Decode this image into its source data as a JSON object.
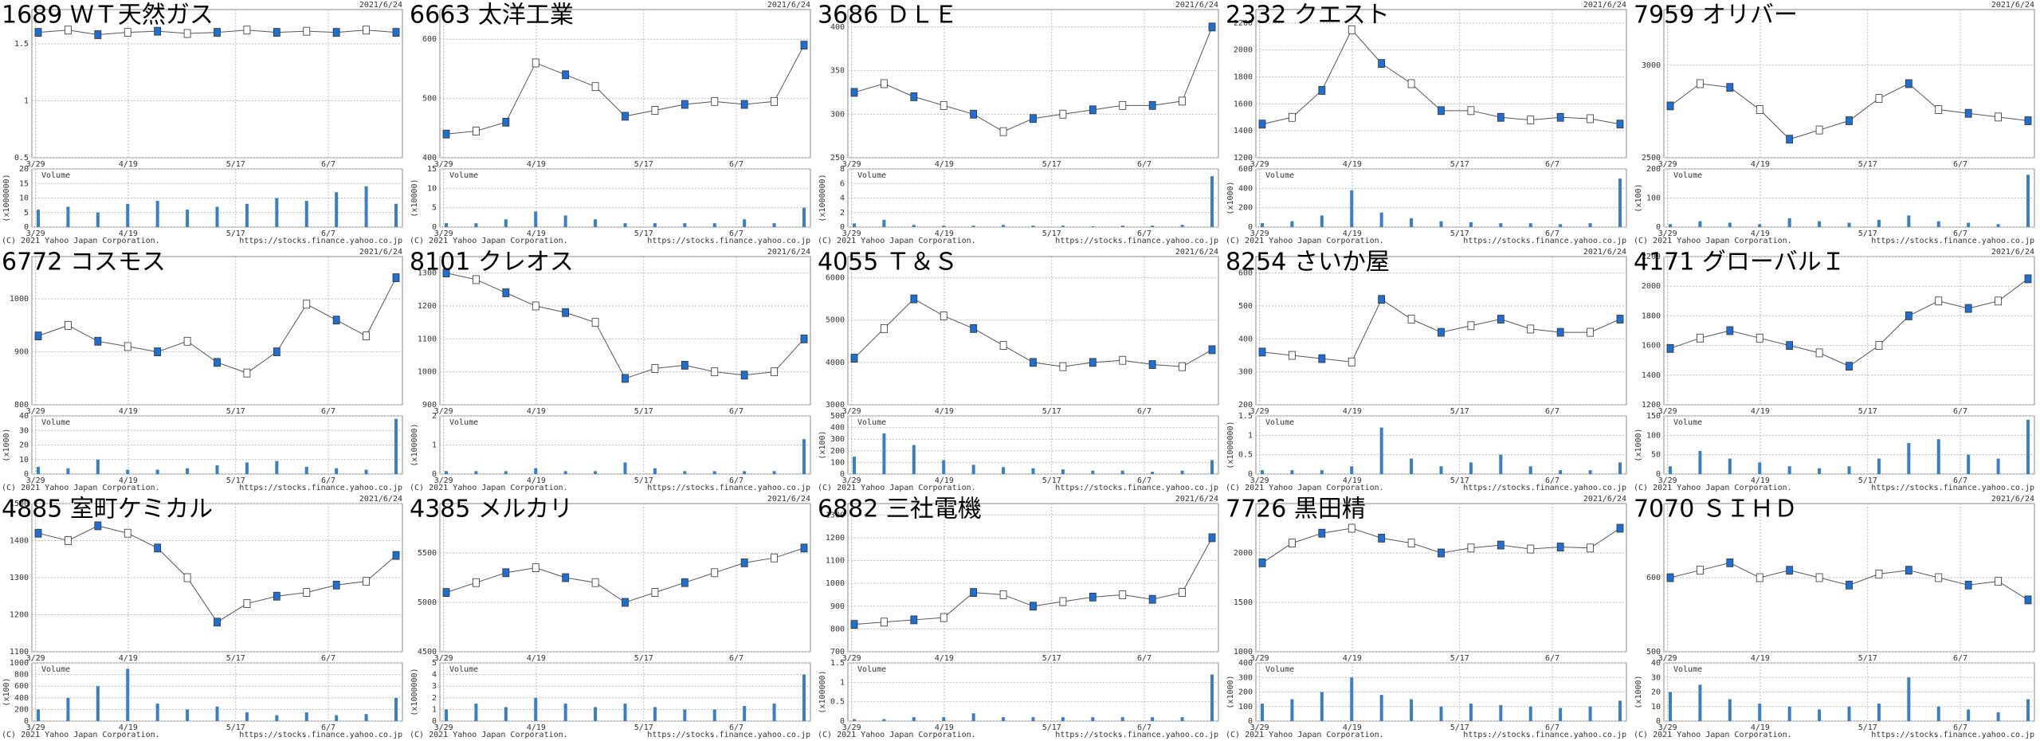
{
  "date": "2021/6/24",
  "footer": {
    "copyright": "(C) 2021 Yahoo Japan Corporation.",
    "url": "https://stocks.finance.yahoo.co.jp"
  },
  "x_labels": [
    "3/29",
    "4/19",
    "5/17",
    "6/7"
  ],
  "chart_data": [
    {
      "type": "line",
      "title": "1689 ＷＴ天然ガス",
      "color": "#1e6fcf",
      "ylim": [
        0.5,
        1.8
      ],
      "yticks": [
        0.5,
        1,
        1.5
      ],
      "values": [
        1.6,
        1.62,
        1.58,
        1.6,
        1.61,
        1.59,
        1.6,
        1.62,
        1.6,
        1.61,
        1.6,
        1.62,
        1.6
      ],
      "volume": {
        "label": "Volume",
        "unit": "(x1000000)",
        "ylim": [
          0,
          20
        ],
        "yticks": [
          0,
          5,
          10,
          15,
          20
        ],
        "values": [
          6,
          7,
          5,
          8,
          9,
          6,
          7,
          8,
          10,
          9,
          12,
          14,
          8
        ]
      }
    },
    {
      "type": "line",
      "title": "6663 太洋工業",
      "color": "#1e6fcf",
      "ylim": [
        400,
        650
      ],
      "yticks": [
        400,
        500,
        600
      ],
      "values": [
        440,
        445,
        460,
        560,
        540,
        520,
        470,
        480,
        490,
        495,
        490,
        495,
        590
      ],
      "volume": {
        "label": "Volume",
        "unit": "(x10000)",
        "ylim": [
          0,
          15
        ],
        "yticks": [
          0,
          5,
          10,
          15
        ],
        "values": [
          1,
          1,
          2,
          4,
          3,
          2,
          1,
          1,
          1,
          1,
          2,
          1,
          5
        ]
      }
    },
    {
      "type": "line",
      "title": "3686 ＤＬＥ",
      "color": "#1e6fcf",
      "ylim": [
        250,
        420
      ],
      "yticks": [
        250,
        300,
        350,
        400
      ],
      "values": [
        325,
        335,
        320,
        310,
        300,
        280,
        295,
        300,
        305,
        310,
        310,
        315,
        400
      ],
      "volume": {
        "label": "Volume",
        "unit": "(x1000000)",
        "ylim": [
          0,
          8
        ],
        "yticks": [
          0,
          2,
          4,
          6,
          8
        ],
        "values": [
          0.5,
          1,
          0.3,
          0.2,
          0.2,
          0.3,
          0.2,
          0.2,
          0.1,
          0.2,
          0.2,
          0.3,
          7
        ]
      }
    },
    {
      "type": "line",
      "title": "2332 クエスト",
      "color": "#1e6fcf",
      "ylim": [
        1200,
        2300
      ],
      "yticks": [
        1200,
        1400,
        1600,
        1800,
        2000,
        2200
      ],
      "values": [
        1450,
        1500,
        1700,
        2150,
        1900,
        1750,
        1550,
        1550,
        1500,
        1480,
        1500,
        1490,
        1450
      ],
      "volume": {
        "label": "Volume",
        "unit": "(x1000)",
        "ylim": [
          0,
          600
        ],
        "yticks": [
          0,
          200,
          400,
          600
        ],
        "values": [
          40,
          60,
          120,
          380,
          150,
          90,
          60,
          50,
          40,
          40,
          30,
          40,
          500
        ]
      }
    },
    {
      "type": "line",
      "title": "7959 オリバー",
      "color": "#1e6fcf",
      "ylim": [
        2500,
        3300
      ],
      "yticks": [
        2500,
        3000
      ],
      "values": [
        2780,
        2900,
        2880,
        2760,
        2600,
        2650,
        2700,
        2820,
        2900,
        2760,
        2740,
        2720,
        2700
      ],
      "volume": {
        "label": "Volume",
        "unit": "(x100)",
        "ylim": [
          0,
          200
        ],
        "yticks": [
          0,
          100,
          200
        ],
        "values": [
          10,
          20,
          15,
          10,
          30,
          20,
          15,
          25,
          40,
          20,
          15,
          10,
          180
        ]
      }
    },
    {
      "type": "line",
      "title": "6772 コスモス",
      "color": "#1e6fcf",
      "ylim": [
        800,
        1080
      ],
      "yticks": [
        800,
        900,
        1000
      ],
      "values": [
        930,
        950,
        920,
        910,
        900,
        920,
        880,
        860,
        900,
        990,
        960,
        930,
        1040
      ],
      "volume": {
        "label": "Volume",
        "unit": "(x1000)",
        "ylim": [
          0,
          40
        ],
        "yticks": [
          0,
          10,
          20,
          30,
          40
        ],
        "values": [
          5,
          4,
          10,
          3,
          3,
          4,
          6,
          8,
          9,
          5,
          4,
          3,
          38
        ]
      }
    },
    {
      "type": "line",
      "title": "8101 クレオス",
      "color": "#1e6fcf",
      "ylim": [
        900,
        1350
      ],
      "yticks": [
        900,
        1000,
        1100,
        1200,
        1300
      ],
      "values": [
        1300,
        1280,
        1240,
        1200,
        1180,
        1150,
        980,
        1010,
        1020,
        1000,
        990,
        1000,
        1100
      ],
      "volume": {
        "label": "Volume",
        "unit": "(x100000)",
        "ylim": [
          0,
          2
        ],
        "yticks": [
          0,
          1,
          2
        ],
        "values": [
          0.1,
          0.1,
          0.1,
          0.2,
          0.1,
          0.1,
          0.4,
          0.2,
          0.1,
          0.1,
          0.1,
          0.1,
          1.2
        ]
      }
    },
    {
      "type": "line",
      "title": "4055 Ｔ＆Ｓ",
      "color": "#1e6fcf",
      "ylim": [
        3000,
        6500
      ],
      "yticks": [
        3000,
        4000,
        5000,
        6000
      ],
      "values": [
        4100,
        4800,
        5500,
        5100,
        4800,
        4400,
        4000,
        3900,
        4000,
        4050,
        3950,
        3900,
        4300
      ],
      "volume": {
        "label": "Volume",
        "unit": "(x100)",
        "ylim": [
          0,
          500
        ],
        "yticks": [
          0,
          100,
          200,
          300,
          400,
          500
        ],
        "values": [
          150,
          350,
          250,
          120,
          80,
          60,
          50,
          40,
          30,
          30,
          20,
          30,
          120
        ]
      }
    },
    {
      "type": "line",
      "title": "8254 さいか屋",
      "color": "#1e6fcf",
      "ylim": [
        200,
        650
      ],
      "yticks": [
        200,
        300,
        400,
        500,
        600
      ],
      "values": [
        360,
        350,
        340,
        330,
        520,
        460,
        420,
        440,
        460,
        430,
        420,
        420,
        460
      ],
      "volume": {
        "label": "Volume",
        "unit": "(x1000000)",
        "ylim": [
          0,
          1.5
        ],
        "yticks": [
          0,
          0.5,
          1,
          1.5
        ],
        "values": [
          0.1,
          0.1,
          0.1,
          0.2,
          1.2,
          0.4,
          0.2,
          0.3,
          0.5,
          0.2,
          0.1,
          0.1,
          0.3
        ]
      }
    },
    {
      "type": "line",
      "title": "4171 グローバルＩ",
      "color": "#1e6fcf",
      "ylim": [
        1200,
        2200
      ],
      "yticks": [
        1200,
        1400,
        1600,
        1800,
        2000,
        2200
      ],
      "values": [
        1580,
        1650,
        1700,
        1650,
        1600,
        1550,
        1460,
        1600,
        1800,
        1900,
        1850,
        1900,
        2050
      ],
      "volume": {
        "label": "Volume",
        "unit": "(x1000)",
        "ylim": [
          0,
          150
        ],
        "yticks": [
          0,
          50,
          100,
          150
        ],
        "values": [
          20,
          60,
          40,
          30,
          20,
          15,
          20,
          40,
          80,
          90,
          50,
          40,
          140
        ]
      }
    },
    {
      "type": "line",
      "title": "4885 室町ケミカル",
      "color": "#1e6fcf",
      "ylim": [
        1100,
        1500
      ],
      "yticks": [
        1100,
        1200,
        1300,
        1400,
        1500
      ],
      "values": [
        1420,
        1400,
        1440,
        1420,
        1380,
        1300,
        1180,
        1230,
        1250,
        1260,
        1280,
        1290,
        1360
      ],
      "volume": {
        "label": "Volume",
        "unit": "(x100)",
        "ylim": [
          0,
          1000
        ],
        "yticks": [
          0,
          200,
          400,
          600,
          800,
          1000
        ],
        "values": [
          200,
          400,
          600,
          900,
          300,
          200,
          250,
          150,
          100,
          150,
          100,
          120,
          400
        ]
      }
    },
    {
      "type": "line",
      "title": "4385 メルカリ",
      "color": "#1e6fcf",
      "ylim": [
        4500,
        6000
      ],
      "yticks": [
        4500,
        5000,
        5500
      ],
      "values": [
        5100,
        5200,
        5300,
        5350,
        5250,
        5200,
        5000,
        5100,
        5200,
        5300,
        5400,
        5450,
        5550
      ],
      "volume": {
        "label": "Volume",
        "unit": "(x1000000)",
        "ylim": [
          0,
          5
        ],
        "yticks": [
          0,
          1,
          2,
          3,
          4,
          5
        ],
        "values": [
          1,
          1.5,
          1.2,
          2,
          1.5,
          1.2,
          1.5,
          1.2,
          1,
          1,
          1.3,
          1.5,
          4
        ]
      }
    },
    {
      "type": "line",
      "title": "6882 三社電機",
      "color": "#1e6fcf",
      "ylim": [
        700,
        1350
      ],
      "yticks": [
        700,
        800,
        900,
        1000,
        1100,
        1200,
        1300
      ],
      "values": [
        820,
        830,
        840,
        850,
        960,
        950,
        900,
        920,
        940,
        950,
        930,
        960,
        1200
      ],
      "volume": {
        "label": "Volume",
        "unit": "(x100000)",
        "ylim": [
          0,
          1.5
        ],
        "yticks": [
          0,
          0.5,
          1,
          1.5
        ],
        "values": [
          0.05,
          0.05,
          0.1,
          0.1,
          0.2,
          0.1,
          0.1,
          0.1,
          0.1,
          0.1,
          0.1,
          0.1,
          1.2
        ]
      }
    },
    {
      "type": "line",
      "title": "7726 黒田精",
      "color": "#1e6fcf",
      "ylim": [
        1000,
        2500
      ],
      "yticks": [
        1000,
        1500,
        2000
      ],
      "values": [
        1900,
        2100,
        2200,
        2250,
        2150,
        2100,
        2000,
        2050,
        2080,
        2040,
        2060,
        2050,
        2250
      ],
      "volume": {
        "label": "Volume",
        "unit": "(x1000)",
        "ylim": [
          0,
          400
        ],
        "yticks": [
          0,
          100,
          200,
          300,
          400
        ],
        "values": [
          120,
          150,
          200,
          300,
          180,
          150,
          100,
          120,
          110,
          100,
          90,
          100,
          140
        ]
      }
    },
    {
      "type": "line",
      "title": "7070 ＳＩＨＤ",
      "color": "#1e6fcf",
      "ylim": [
        500,
        700
      ],
      "yticks": [
        500,
        600
      ],
      "values": [
        600,
        610,
        620,
        600,
        610,
        600,
        590,
        605,
        610,
        600,
        590,
        595,
        570
      ],
      "volume": {
        "label": "Volume",
        "unit": "(x1000)",
        "ylim": [
          0,
          40
        ],
        "yticks": [
          0,
          10,
          20,
          30,
          40
        ],
        "values": [
          20,
          25,
          15,
          12,
          10,
          8,
          10,
          12,
          30,
          10,
          8,
          6,
          15
        ]
      }
    }
  ]
}
